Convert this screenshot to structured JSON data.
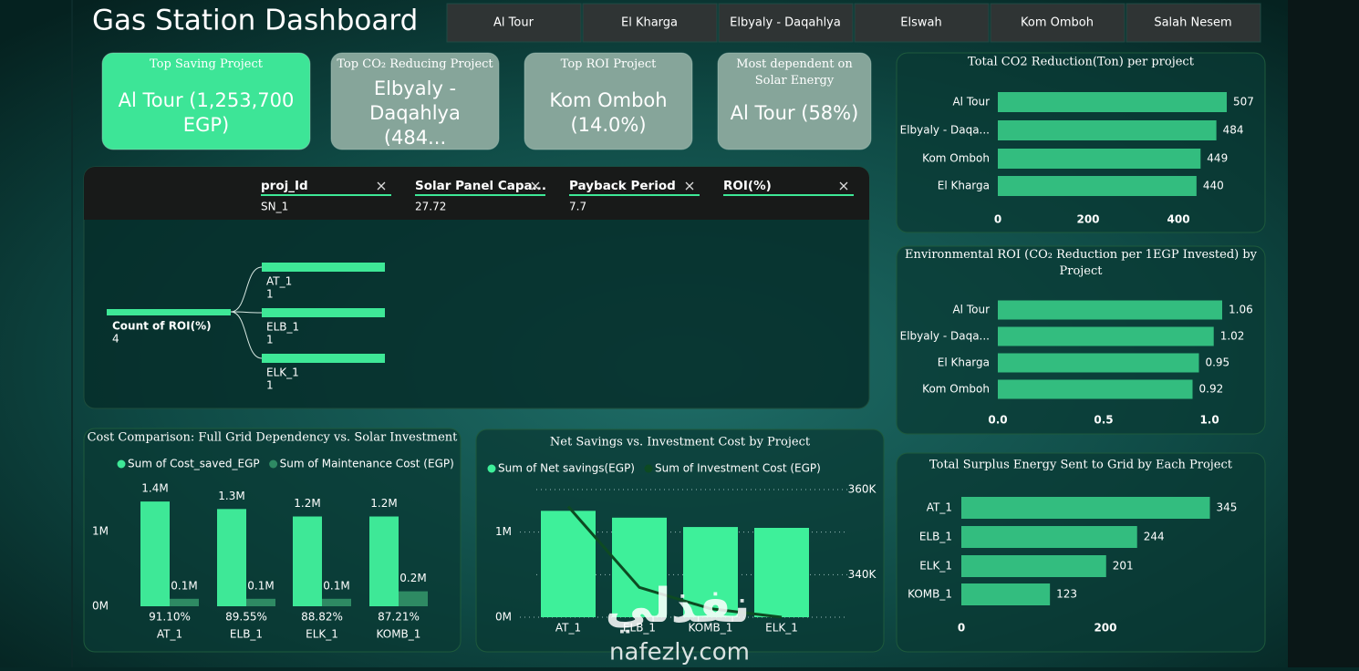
{
  "header": {
    "title": "Gas Station Dashboard"
  },
  "tabs": [
    "Al Tour",
    "El Kharga",
    "Elbyaly - Daqahlya",
    "Elswah",
    "Kom Omboh",
    "Salah Nesem"
  ],
  "kpis": [
    {
      "title": "Top Saving Project",
      "value": "Al Tour (1,253,700 EGP)"
    },
    {
      "title": "Top CO₂ Reducing Project",
      "value": "Elbyaly - Daqahlya (484..."
    },
    {
      "title": "Top ROI Project",
      "value": "Kom Omboh (14.0%)"
    },
    {
      "title": "Most dependent on Solar Energy",
      "value": "Al Tour (58%)"
    }
  ],
  "decomposition_tree": {
    "columns": [
      "proj_Id",
      "Solar Panel Capa...",
      "Payback Period",
      "ROI(%)"
    ],
    "row": [
      "SN_1",
      "27.72",
      "7.7"
    ],
    "root": {
      "label": "Count of ROI(%)",
      "value": 4
    },
    "children": [
      {
        "label": "AT_1",
        "value": 1
      },
      {
        "label": "ELB_1",
        "value": 1
      },
      {
        "label": "ELK_1",
        "value": 1
      }
    ]
  },
  "watermark": {
    "arabic": "نفذلي",
    "latin": "nafezly.com"
  },
  "chart_data": [
    {
      "type": "hbar",
      "title": "Total CO2 Reduction(Ton) per project",
      "categories": [
        "Al Tour",
        "Elbyaly - Daqa...",
        "Kom Omboh",
        "El Kharga"
      ],
      "values": [
        507,
        484,
        449,
        440
      ],
      "color": "#33bd7f",
      "xlim": [
        0,
        510
      ],
      "xticks": [
        0,
        200,
        400
      ]
    },
    {
      "type": "hbar",
      "title": "Environmental ROI (CO₂ Reduction per 1EGP Invested) by Project",
      "categories": [
        "Al Tour",
        "Elbyaly - Daqa...",
        "El Kharga",
        "Kom Omboh"
      ],
      "values": [
        1.06,
        1.02,
        0.95,
        0.92
      ],
      "color": "#33bd7f",
      "xlim": [
        0,
        1.06
      ],
      "xticks": [
        {
          "value": 0,
          "label": "0.0"
        },
        0.5,
        {
          "value": 1,
          "label": "1.0"
        }
      ]
    },
    {
      "type": "hbar",
      "title": "Total Surplus Energy Sent to Grid by Each Project",
      "categories": [
        "AT_1",
        "ELB_1",
        "ELK_1",
        "KOMB_1"
      ],
      "values": [
        345,
        244,
        201,
        123
      ],
      "color": "#33bd7f",
      "xlim": [
        0,
        345
      ],
      "xticks": [
        0,
        200
      ]
    },
    {
      "type": "grouped-bar",
      "title": "Cost Comparison: Full Grid Dependency vs. Solar Investment",
      "categories": [
        "AT_1",
        "ELB_1",
        "ELK_1",
        "KOMB_1"
      ],
      "series": [
        {
          "name": "Sum of Cost_saved_EGP",
          "color": "#3ee897",
          "values": [
            1400000,
            1300000,
            1200000,
            1200000
          ],
          "value_labels": [
            "1.4M",
            "1.3M",
            "1.2M",
            "1.2M"
          ]
        },
        {
          "name": "Sum of Maintenance Cost (EGP)",
          "color": "#2e8a63",
          "values": [
            100000,
            100000,
            100000,
            200000
          ],
          "value_labels": [
            "0.1M",
            "0.1M",
            "0.1M",
            "0.2M"
          ]
        }
      ],
      "ratio_labels": [
        "91.10%",
        "89.55%",
        "88.82%",
        "87.21%"
      ],
      "ylim": [
        0,
        1450000
      ],
      "yticks": [
        {
          "value": 0,
          "label": "0M"
        },
        {
          "value": 1000000,
          "label": "1M"
        }
      ]
    },
    {
      "type": "combo",
      "title": "Net Savings vs. Investment Cost by Project",
      "categories": [
        "AT_1",
        "ELB_1",
        "KOMB_1",
        "ELK_1"
      ],
      "series": [
        {
          "name": "Sum of Net savings(EGP)",
          "color": "#3ef09a",
          "values": [
            1250000,
            1170000,
            1060000,
            1050000
          ]
        },
        {
          "name": "Sum of Investment Cost (EGP)",
          "color": "#0d4a22",
          "axis": "y2",
          "values": [
            356000,
            337000,
            332000,
            330000
          ]
        }
      ],
      "ylim": [
        0,
        1500000
      ],
      "yticks": [
        {
          "value": 0,
          "label": "0M"
        },
        {
          "value": 1000000,
          "label": "1M"
        }
      ],
      "y2lim": [
        330000,
        360000
      ],
      "y2ticks": [
        {
          "value": 340000,
          "label": "340K"
        },
        {
          "value": 360000,
          "label": "360K"
        }
      ],
      "grid": true
    }
  ]
}
